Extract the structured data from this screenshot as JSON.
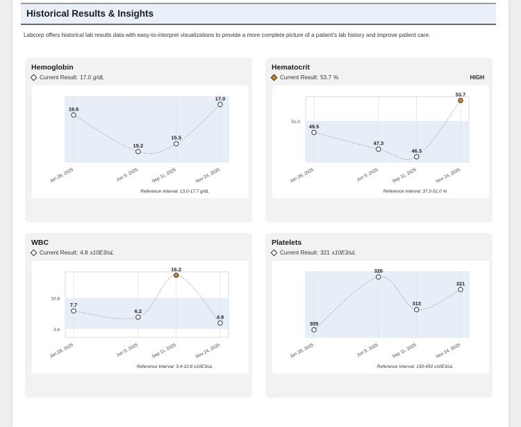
{
  "header": {
    "title": "Historical Results & Insights",
    "intro": "Labcorp offers historical lab results data with easy-to-interpret visualizations to provide a more complete picture of a patient's lab history and improve patient care."
  },
  "colors": {
    "reference_band": "#e6eef8",
    "axis": "#c8c8c8",
    "normal_point": "#ffffff",
    "high_point": "#c98a2c",
    "line": "#9a9a9a"
  },
  "cards": [
    {
      "title": "Hemoglobin",
      "current_label": "Current Result:",
      "current_value": "17.0",
      "unit": "g/dL",
      "flag": "",
      "reference_interval": "Reference Interval: 13.0-17.7 g/dL"
    },
    {
      "title": "Hematocrit",
      "current_label": "Current Result:",
      "current_value": "53.7",
      "unit": "%",
      "flag": "HIGH",
      "reference_interval": "Reference Interval: 37.5-51.0 %"
    },
    {
      "title": "WBC",
      "current_label": "Current Result:",
      "current_value": "4.8",
      "unit": "x10E3/uL",
      "flag": "",
      "reference_interval": "Reference Interval: 3.4-10.8 x10E3/uL"
    },
    {
      "title": "Platelets",
      "current_label": "Current Result:",
      "current_value": "321",
      "unit": "x10E3/uL",
      "flag": "",
      "reference_interval": "Reference Interval: 150-450 x10E3/uL"
    }
  ],
  "chart_data": [
    {
      "type": "line",
      "title": "Hemoglobin",
      "x": [
        "Jan 28, 2025",
        "Jun 9, 2025",
        "Sep 11, 2025",
        "Nov 24, 2025"
      ],
      "values": [
        16.6,
        15.2,
        15.5,
        17.0
      ],
      "labels": [
        "16.6",
        "15.2",
        "15.5",
        "17.0"
      ],
      "flags": [
        "normal",
        "normal",
        "normal",
        "normal"
      ],
      "reference_range": [
        13.0,
        17.7
      ],
      "ref_tick_labels": [],
      "ylim": [
        14.8,
        17.3
      ]
    },
    {
      "type": "line",
      "title": "Hematocrit",
      "x": [
        "Jan 28, 2025",
        "Jun 9, 2025",
        "Sep 11, 2025",
        "Nov 24, 2025"
      ],
      "values": [
        49.5,
        47.3,
        46.3,
        53.7
      ],
      "labels": [
        "49.5",
        "47.3",
        "46.3",
        "53.7"
      ],
      "flags": [
        "normal",
        "normal",
        "normal",
        "high"
      ],
      "reference_range": [
        37.5,
        51.0
      ],
      "ref_tick_labels": [
        "51.0"
      ],
      "ylim": [
        45.6,
        54.2
      ]
    },
    {
      "type": "line",
      "title": "WBC",
      "x": [
        "Jan 28, 2025",
        "Jun 9, 2025",
        "Sep 11, 2025",
        "Nov 24, 2025"
      ],
      "values": [
        7.7,
        6.2,
        16.2,
        4.8
      ],
      "labels": [
        "7.7",
        "6.2",
        "16.2",
        "4.8"
      ],
      "flags": [
        "normal",
        "normal",
        "high",
        "normal"
      ],
      "reference_range": [
        3.4,
        10.8
      ],
      "ref_tick_labels": [
        "10.8",
        "3.4"
      ],
      "ylim": [
        1.4,
        17.0
      ]
    },
    {
      "type": "line",
      "title": "Platelets",
      "x": [
        "Jan 28, 2025",
        "Jun 9, 2025",
        "Sep 11, 2025",
        "Nov 24, 2025"
      ],
      "values": [
        305,
        326,
        313,
        321
      ],
      "labels": [
        "305",
        "326",
        "313",
        "321"
      ],
      "flags": [
        "normal",
        "normal",
        "normal",
        "normal"
      ],
      "reference_range": [
        150,
        450
      ],
      "ref_tick_labels": [],
      "ylim": [
        302,
        328
      ]
    }
  ]
}
